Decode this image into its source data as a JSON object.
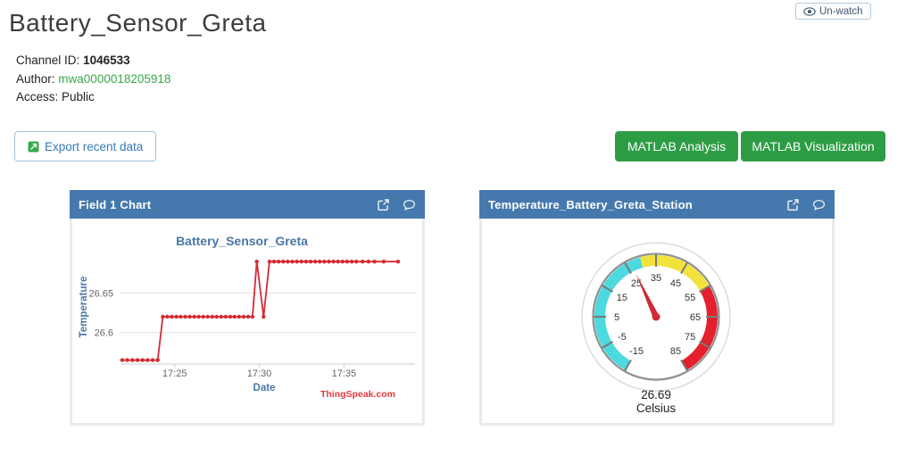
{
  "page": {
    "title": "Battery_Sensor_Greta"
  },
  "watch_button": {
    "label": "Un-watch"
  },
  "channel_info": {
    "id_label": "Channel ID:",
    "id_value": "1046533",
    "author_label": "Author:",
    "author_value": "mwa0000018205918",
    "access_label": "Access:",
    "access_value": "Public"
  },
  "toolbar": {
    "export_label": "Export recent data",
    "matlab_analysis_label": "MATLAB Analysis",
    "matlab_visualization_label": "MATLAB Visualization"
  },
  "widgets": {
    "chart": {
      "header": "Field 1 Chart"
    },
    "gauge": {
      "header": "Temperature_Battery_Greta_Station",
      "value_text": "26.69",
      "unit_text": "Celsius"
    }
  },
  "colors": {
    "header_blue": "#4579ad",
    "link_green": "#37a94c",
    "button_green": "#2d9d45",
    "line_red": "#d62a32",
    "watermark_red": "#e4393c",
    "axis_label_blue": "#4a77a7",
    "gauge_cyan": "#4dd9e0",
    "gauge_yellow": "#f2e33c",
    "gauge_red": "#e3202b"
  },
  "chart_data": [
    {
      "type": "line",
      "title": "Battery_Sensor_Greta",
      "xlabel": "Date",
      "ylabel": "Temperature",
      "watermark": "ThingSpeak.com",
      "x_unit": "minutes after 17:20",
      "xlim": [
        1.8,
        19.2
      ],
      "ylim": [
        26.56,
        26.705
      ],
      "yticks": [
        {
          "v": 26.6,
          "label": "26.6"
        },
        {
          "v": 26.65,
          "label": "26.65"
        }
      ],
      "xticks": [
        {
          "x": 5,
          "label": "17:25"
        },
        {
          "x": 10,
          "label": "17:30"
        },
        {
          "x": 15,
          "label": "17:35"
        }
      ],
      "grid": true,
      "legend": "none",
      "series": [
        {
          "name": "Temperature",
          "color": "#d62a32",
          "points": [
            [
              1.9,
              26.565
            ],
            [
              2.2,
              26.565
            ],
            [
              2.5,
              26.565
            ],
            [
              2.8,
              26.565
            ],
            [
              3.1,
              26.565
            ],
            [
              3.4,
              26.565
            ],
            [
              3.7,
              26.565
            ],
            [
              4.0,
              26.565
            ],
            [
              4.3,
              26.62
            ],
            [
              4.57,
              26.62
            ],
            [
              4.83,
              26.62
            ],
            [
              5.1,
              26.62
            ],
            [
              5.36,
              26.62
            ],
            [
              5.63,
              26.62
            ],
            [
              5.89,
              26.62
            ],
            [
              6.16,
              26.62
            ],
            [
              6.42,
              26.62
            ],
            [
              6.69,
              26.62
            ],
            [
              6.95,
              26.62
            ],
            [
              7.22,
              26.62
            ],
            [
              7.48,
              26.62
            ],
            [
              7.75,
              26.62
            ],
            [
              8.01,
              26.62
            ],
            [
              8.28,
              26.62
            ],
            [
              8.54,
              26.62
            ],
            [
              8.81,
              26.62
            ],
            [
              9.07,
              26.62
            ],
            [
              9.34,
              26.62
            ],
            [
              9.6,
              26.62
            ],
            [
              9.85,
              26.69
            ],
            [
              10.25,
              26.62
            ],
            [
              10.6,
              26.69
            ],
            [
              10.87,
              26.69
            ],
            [
              11.14,
              26.69
            ],
            [
              11.41,
              26.69
            ],
            [
              11.68,
              26.69
            ],
            [
              11.95,
              26.69
            ],
            [
              12.22,
              26.69
            ],
            [
              12.49,
              26.69
            ],
            [
              12.76,
              26.69
            ],
            [
              13.03,
              26.69
            ],
            [
              13.3,
              26.69
            ],
            [
              13.57,
              26.69
            ],
            [
              13.84,
              26.69
            ],
            [
              14.11,
              26.69
            ],
            [
              14.38,
              26.69
            ],
            [
              14.65,
              26.69
            ],
            [
              14.92,
              26.69
            ],
            [
              15.19,
              26.69
            ],
            [
              15.46,
              26.69
            ],
            [
              15.73,
              26.69
            ],
            [
              16.1,
              26.69
            ],
            [
              16.45,
              26.69
            ],
            [
              16.8,
              26.69
            ],
            [
              17.35,
              26.69
            ],
            [
              18.2,
              26.69
            ]
          ]
        }
      ]
    },
    {
      "type": "gauge",
      "title": "Temperature_Battery_Greta_Station",
      "min": -15,
      "max": 85,
      "start_angle": -150,
      "end_angle": 150,
      "tick_interval": 10,
      "bands": [
        {
          "from": -15,
          "to": 30,
          "color": "#4dd9e0"
        },
        {
          "from": 30,
          "to": 55,
          "color": "#f2e33c"
        },
        {
          "from": 55,
          "to": 85,
          "color": "#e3202b"
        }
      ],
      "value": 26.69,
      "unit": "Celsius"
    }
  ]
}
